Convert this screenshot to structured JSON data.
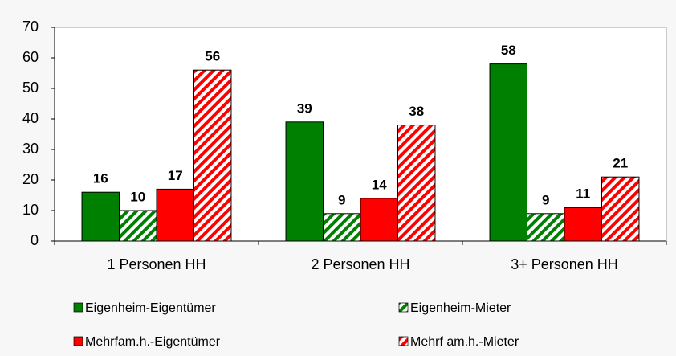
{
  "chart_data": {
    "type": "bar",
    "categories": [
      "1 Personen HH",
      "2 Personen HH",
      "3+ Personen HH"
    ],
    "series": [
      {
        "name": "Eigenheim-Eigentümer",
        "color": "#008000",
        "hatch": false,
        "values": [
          16,
          39,
          58
        ]
      },
      {
        "name": "Eigenheim-Mieter",
        "color": "#008000",
        "hatch": true,
        "values": [
          10,
          9,
          9
        ]
      },
      {
        "name": "Mehrfam.h.-Eigentümer",
        "color": "#ff0000",
        "hatch": false,
        "values": [
          17,
          14,
          11
        ]
      },
      {
        "name": "Mehrf am.h.-Mieter",
        "color": "#ff0000",
        "hatch": true,
        "values": [
          56,
          38,
          21
        ]
      }
    ],
    "ylim": [
      0,
      70
    ],
    "yticks": [
      0,
      10,
      20,
      30,
      40,
      50,
      60,
      70
    ],
    "grid": false,
    "legend": "bottom"
  }
}
